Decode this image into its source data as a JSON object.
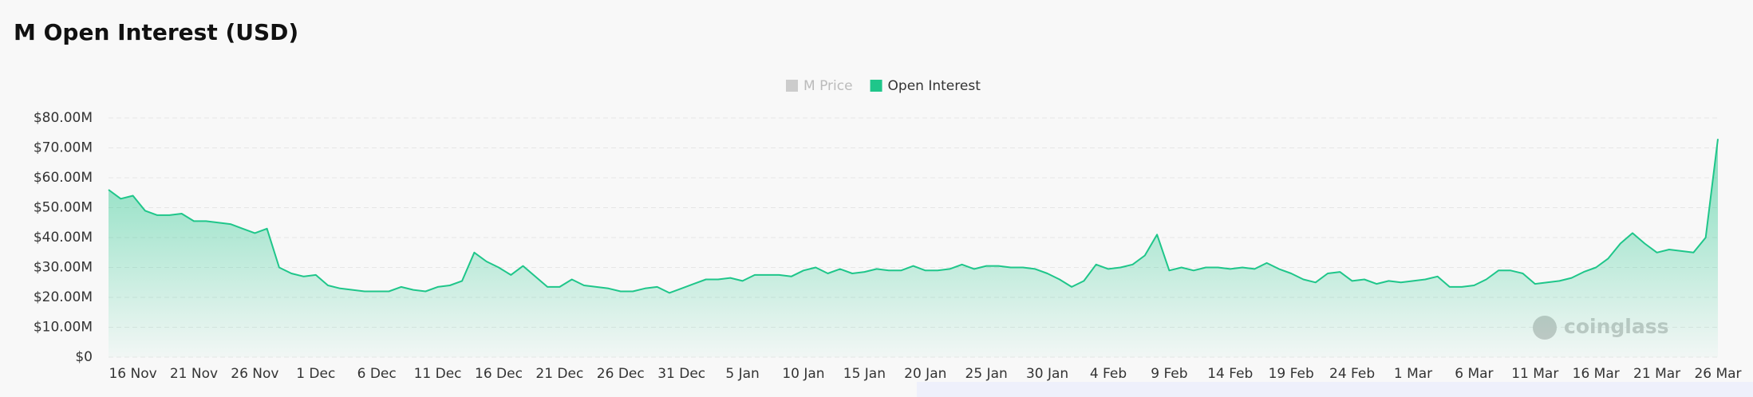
{
  "chart_data": {
    "type": "area",
    "title": "M Open Interest (USD)",
    "watermark": "coinglass",
    "legend": [
      {
        "name": "M Price",
        "color": "#cccccc",
        "active": false
      },
      {
        "name": "Open Interest",
        "color": "#1fc68a",
        "active": true
      }
    ],
    "categories": [
      null,
      null,
      "16 Nov",
      null,
      null,
      null,
      null,
      "21 Nov",
      null,
      null,
      null,
      null,
      "26 Nov",
      null,
      null,
      null,
      null,
      "1 Dec",
      null,
      null,
      null,
      null,
      "6 Dec",
      null,
      null,
      null,
      null,
      "11 Dec",
      null,
      null,
      null,
      null,
      "16 Dec",
      null,
      null,
      null,
      null,
      "21 Dec",
      null,
      null,
      null,
      null,
      "26 Dec",
      null,
      null,
      null,
      null,
      "31 Dec",
      null,
      null,
      null,
      null,
      "5 Jan",
      null,
      null,
      null,
      null,
      "10 Jan",
      null,
      null,
      null,
      null,
      "15 Jan",
      null,
      null,
      null,
      null,
      "20 Jan",
      null,
      null,
      null,
      null,
      "25 Jan",
      null,
      null,
      null,
      null,
      "30 Jan",
      null,
      null,
      null,
      null,
      "4 Feb",
      null,
      null,
      null,
      null,
      "9 Feb",
      null,
      null,
      null,
      null,
      "14 Feb",
      null,
      null,
      null,
      null,
      "19 Feb",
      null,
      null,
      null,
      null,
      "24 Feb",
      null,
      null,
      null,
      null,
      "1 Mar",
      null,
      null,
      null,
      null,
      "6 Mar",
      null,
      null,
      null,
      null,
      "11 Mar",
      null,
      null,
      null,
      null,
      "16 Mar",
      null,
      null,
      null,
      null,
      "21 Mar",
      null,
      null,
      null,
      null,
      "26 Mar"
    ],
    "series": [
      {
        "name": "Open Interest",
        "color": "#1fc68a",
        "values": [
          56,
          53,
          54,
          49,
          47.5,
          47.5,
          48,
          45.5,
          45.5,
          45,
          44.5,
          43,
          41.5,
          43,
          30,
          28,
          27,
          27.5,
          24,
          23,
          22.5,
          22,
          22,
          22,
          23.5,
          22.5,
          22,
          23.5,
          24,
          25.5,
          35,
          32,
          30,
          27.5,
          30.5,
          27,
          23.5,
          23.5,
          26,
          24,
          23.5,
          23,
          22,
          22,
          23,
          23.5,
          21.5,
          23,
          24.5,
          26,
          26,
          26.5,
          25.5,
          27.5,
          27.5,
          27.5,
          27,
          29,
          30,
          28,
          29.5,
          28,
          28.5,
          29.5,
          29,
          29,
          30.5,
          29,
          29,
          29.5,
          31,
          29.5,
          30.5,
          30.5,
          30,
          30,
          29.5,
          28,
          26,
          23.5,
          25.5,
          31,
          29.5,
          30,
          31,
          34,
          41,
          29,
          30,
          29,
          30,
          30,
          29.5,
          30,
          29.5,
          31.5,
          29.5,
          28,
          26,
          25,
          28,
          28.5,
          25.5,
          26,
          24.5,
          25.5,
          25,
          25.5,
          26,
          27,
          23.5,
          23.5,
          24,
          26,
          29,
          29,
          28,
          24.5,
          25,
          25.5,
          26.5,
          28.5,
          30,
          33,
          38,
          41.5,
          38,
          35,
          36,
          35.5,
          35,
          40,
          73
        ]
      }
    ],
    "ylim": [
      0,
      80
    ],
    "yticks": [
      {
        "value": 0,
        "label": "$0"
      },
      {
        "value": 10,
        "label": "$10.00M"
      },
      {
        "value": 20,
        "label": "$20.00M"
      },
      {
        "value": 30,
        "label": "$30.00M"
      },
      {
        "value": 40,
        "label": "$40.00M"
      },
      {
        "value": 50,
        "label": "$50.00M"
      },
      {
        "value": 60,
        "label": "$60.00M"
      },
      {
        "value": 70,
        "label": "$70.00M"
      },
      {
        "value": 80,
        "label": "$80.00M"
      }
    ],
    "grid": true
  }
}
